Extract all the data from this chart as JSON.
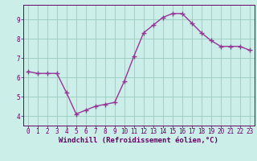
{
  "x": [
    0,
    1,
    2,
    3,
    4,
    5,
    6,
    7,
    8,
    9,
    10,
    11,
    12,
    13,
    14,
    15,
    16,
    17,
    18,
    19,
    20,
    21,
    22,
    23
  ],
  "y": [
    6.3,
    6.2,
    6.2,
    6.2,
    5.2,
    4.1,
    4.3,
    4.5,
    4.6,
    4.7,
    5.8,
    7.1,
    8.3,
    8.7,
    9.1,
    9.3,
    9.3,
    8.8,
    8.3,
    7.9,
    7.6,
    7.6,
    7.6,
    7.4
  ],
  "line_color": "#993399",
  "marker": "+",
  "marker_size": 4,
  "marker_linewidth": 1.0,
  "linewidth": 1.0,
  "xlabel": "Windchill (Refroidissement éolien,°C)",
  "xlabel_fontsize": 6.5,
  "xlim": [
    -0.5,
    23.5
  ],
  "ylim": [
    3.5,
    9.75
  ],
  "yticks": [
    4,
    5,
    6,
    7,
    8,
    9
  ],
  "xticks": [
    0,
    1,
    2,
    3,
    4,
    5,
    6,
    7,
    8,
    9,
    10,
    11,
    12,
    13,
    14,
    15,
    16,
    17,
    18,
    19,
    20,
    21,
    22,
    23
  ],
  "tick_fontsize": 5.5,
  "grid_color": "#99ccbb",
  "background_color": "#cceee8",
  "axis_color": "#660066",
  "label_color": "#660066",
  "tick_color": "#660066"
}
